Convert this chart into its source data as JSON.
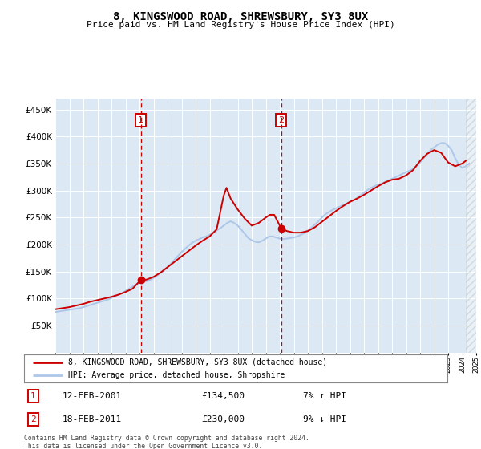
{
  "title": "8, KINGSWOOD ROAD, SHREWSBURY, SY3 8UX",
  "subtitle": "Price paid vs. HM Land Registry's House Price Index (HPI)",
  "legend_line1": "8, KINGSWOOD ROAD, SHREWSBURY, SY3 8UX (detached house)",
  "legend_line2": "HPI: Average price, detached house, Shropshire",
  "annotation1_label": "1",
  "annotation1_date": "12-FEB-2001",
  "annotation1_price": "£134,500",
  "annotation1_hpi": "7% ↑ HPI",
  "annotation2_label": "2",
  "annotation2_date": "18-FEB-2011",
  "annotation2_price": "£230,000",
  "annotation2_hpi": "9% ↓ HPI",
  "footnote": "Contains HM Land Registry data © Crown copyright and database right 2024.\nThis data is licensed under the Open Government Licence v3.0.",
  "hpi_color": "#aec6e8",
  "price_color": "#cc0000",
  "vline_color": "#cc0000",
  "plot_bg_color": "#dce9f5",
  "annotation_box_color": "#cc0000",
  "ylim": [
    0,
    470000
  ],
  "yticks": [
    50000,
    100000,
    150000,
    200000,
    250000,
    300000,
    350000,
    400000,
    450000
  ],
  "sale1_year": 2001.1,
  "sale1_price": 134500,
  "sale2_year": 2011.1,
  "sale2_price": 230000,
  "hpi_years": [
    1995,
    1995.25,
    1995.5,
    1995.75,
    1996,
    1996.25,
    1996.5,
    1996.75,
    1997,
    1997.25,
    1997.5,
    1997.75,
    1998,
    1998.25,
    1998.5,
    1998.75,
    1999,
    1999.25,
    1999.5,
    1999.75,
    2000,
    2000.25,
    2000.5,
    2000.75,
    2001,
    2001.25,
    2001.5,
    2001.75,
    2002,
    2002.25,
    2002.5,
    2002.75,
    2003,
    2003.25,
    2003.5,
    2003.75,
    2004,
    2004.25,
    2004.5,
    2004.75,
    2005,
    2005.25,
    2005.5,
    2005.75,
    2006,
    2006.25,
    2006.5,
    2006.75,
    2007,
    2007.25,
    2007.5,
    2007.75,
    2008,
    2008.25,
    2008.5,
    2008.75,
    2009,
    2009.25,
    2009.5,
    2009.75,
    2010,
    2010.25,
    2010.5,
    2010.75,
    2011,
    2011.25,
    2011.5,
    2011.75,
    2012,
    2012.25,
    2012.5,
    2012.75,
    2013,
    2013.25,
    2013.5,
    2013.75,
    2014,
    2014.25,
    2014.5,
    2014.75,
    2015,
    2015.25,
    2015.5,
    2015.75,
    2016,
    2016.25,
    2016.5,
    2016.75,
    2017,
    2017.25,
    2017.5,
    2017.75,
    2018,
    2018.25,
    2018.5,
    2018.75,
    2019,
    2019.25,
    2019.5,
    2019.75,
    2020,
    2020.25,
    2020.5,
    2020.75,
    2021,
    2021.25,
    2021.5,
    2021.75,
    2022,
    2022.25,
    2022.5,
    2022.75,
    2023,
    2023.25,
    2023.5,
    2023.75,
    2024,
    2024.25,
    2024.5
  ],
  "hpi_values": [
    75000,
    76000,
    77000,
    78000,
    79000,
    80000,
    81000,
    82000,
    84000,
    86000,
    88000,
    90000,
    92000,
    94000,
    96000,
    98000,
    101000,
    104000,
    107000,
    110000,
    114000,
    118000,
    122000,
    126000,
    128000,
    130000,
    132000,
    134000,
    138000,
    142000,
    147000,
    152000,
    158000,
    165000,
    172000,
    179000,
    186000,
    192000,
    198000,
    203000,
    207000,
    210000,
    213000,
    215000,
    218000,
    222000,
    226000,
    230000,
    235000,
    240000,
    243000,
    240000,
    235000,
    228000,
    220000,
    212000,
    208000,
    205000,
    204000,
    207000,
    211000,
    215000,
    215000,
    213000,
    211000,
    210000,
    211000,
    212000,
    213000,
    215000,
    218000,
    221000,
    226000,
    231000,
    237000,
    243000,
    250000,
    256000,
    260000,
    264000,
    267000,
    270000,
    273000,
    276000,
    279000,
    282000,
    286000,
    291000,
    296000,
    301000,
    305000,
    308000,
    311000,
    313000,
    316000,
    319000,
    322000,
    325000,
    328000,
    331000,
    334000,
    337000,
    340000,
    345000,
    352000,
    360000,
    368000,
    375000,
    380000,
    385000,
    388000,
    388000,
    383000,
    375000,
    360000,
    348000,
    342000,
    345000,
    350000
  ],
  "price_years": [
    1995,
    1995.5,
    1996,
    1996.5,
    1997,
    1997.5,
    1998,
    1998.5,
    1999,
    1999.5,
    2000,
    2000.5,
    2001.1,
    2001.5,
    2002,
    2002.5,
    2003,
    2003.5,
    2004,
    2004.5,
    2005,
    2005.5,
    2006,
    2006.5,
    2007,
    2007.2,
    2007.5,
    2008,
    2008.5,
    2009,
    2009.5,
    2010,
    2010.3,
    2010.6,
    2011.1,
    2011.5,
    2012,
    2012.5,
    2013,
    2013.5,
    2014,
    2014.5,
    2015,
    2015.5,
    2016,
    2016.5,
    2017,
    2017.5,
    2018,
    2018.5,
    2019,
    2019.5,
    2020,
    2020.5,
    2021,
    2021.5,
    2022,
    2022.5,
    2023,
    2023.5,
    2024,
    2024.25
  ],
  "price_values": [
    80000,
    82000,
    84000,
    87000,
    90000,
    94000,
    97000,
    100000,
    103000,
    107000,
    112000,
    118000,
    134500,
    135000,
    140000,
    148000,
    158000,
    168000,
    178000,
    188000,
    198000,
    207000,
    215000,
    228000,
    290000,
    305000,
    285000,
    265000,
    248000,
    235000,
    240000,
    250000,
    255000,
    255000,
    230000,
    225000,
    222000,
    222000,
    225000,
    232000,
    242000,
    252000,
    262000,
    271000,
    279000,
    285000,
    292000,
    300000,
    308000,
    315000,
    320000,
    322000,
    328000,
    338000,
    355000,
    368000,
    375000,
    370000,
    352000,
    345000,
    350000,
    355000
  ],
  "hatch_start": 2024.25,
  "hatch_end": 2025,
  "xlim": [
    1995,
    2025
  ]
}
